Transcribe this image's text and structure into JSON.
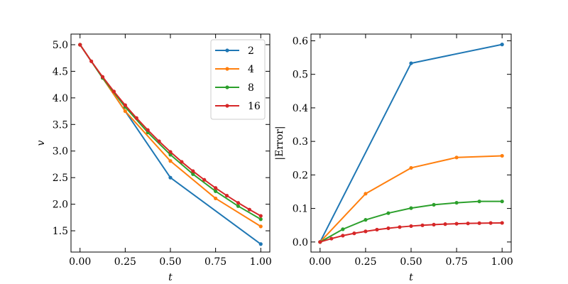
{
  "chart_data": [
    {
      "type": "line",
      "xlabel": "t",
      "ylabel": "v",
      "xlim": [
        -0.05,
        1.05
      ],
      "ylim": [
        1.1,
        5.2
      ],
      "xticks": [
        0.0,
        0.25,
        0.5,
        0.75,
        1.0
      ],
      "xtick_labels": [
        "0.00",
        "0.25",
        "0.50",
        "0.75",
        "1.00"
      ],
      "yticks": [
        1.5,
        2.0,
        2.5,
        3.0,
        3.5,
        4.0,
        4.5,
        5.0
      ],
      "ytick_labels": [
        "1.5",
        "2.0",
        "2.5",
        "3.0",
        "3.5",
        "4.0",
        "4.5",
        "5.0"
      ],
      "grid": false,
      "legend": "top-right",
      "series": [
        {
          "name": "2",
          "color": "#1f77b4",
          "x": [
            0,
            0.5,
            1.0
          ],
          "y": [
            5.0,
            2.5,
            1.25
          ]
        },
        {
          "name": "4",
          "color": "#ff7f0e",
          "x": [
            0,
            0.25,
            0.5,
            0.75,
            1.0
          ],
          "y": [
            5.0,
            3.75,
            2.8125,
            2.109,
            1.582
          ]
        },
        {
          "name": "8",
          "color": "#2ca02c",
          "x": [
            0,
            0.125,
            0.25,
            0.375,
            0.5,
            0.625,
            0.75,
            0.875,
            1.0
          ],
          "y": [
            5.0,
            4.375,
            3.828,
            3.35,
            2.931,
            2.565,
            2.244,
            1.964,
            1.718
          ]
        },
        {
          "name": "16",
          "color": "#d62728",
          "x": [
            0,
            0.0625,
            0.125,
            0.1875,
            0.25,
            0.3125,
            0.375,
            0.4375,
            0.5,
            0.5625,
            0.625,
            0.6875,
            0.75,
            0.8125,
            0.875,
            0.9375,
            1.0
          ],
          "y": [
            5.0,
            4.688,
            4.395,
            4.12,
            3.863,
            3.621,
            3.395,
            3.183,
            2.984,
            2.797,
            2.622,
            2.459,
            2.305,
            2.161,
            2.026,
            1.899,
            1.78
          ]
        }
      ]
    },
    {
      "type": "line",
      "xlabel": "t",
      "ylabel": "|Error|",
      "xlim": [
        -0.05,
        1.05
      ],
      "ylim": [
        -0.03,
        0.62
      ],
      "xticks": [
        0.0,
        0.25,
        0.5,
        0.75,
        1.0
      ],
      "xtick_labels": [
        "0.00",
        "0.25",
        "0.50",
        "0.75",
        "1.00"
      ],
      "yticks": [
        0.0,
        0.1,
        0.2,
        0.3,
        0.4,
        0.5,
        0.6
      ],
      "ytick_labels": [
        "0.0",
        "0.1",
        "0.2",
        "0.3",
        "0.4",
        "0.5",
        "0.6"
      ],
      "grid": false,
      "series": [
        {
          "name": "2",
          "color": "#1f77b4",
          "x": [
            0,
            0.5,
            1.0
          ],
          "y": [
            0.0,
            0.533,
            0.589
          ]
        },
        {
          "name": "4",
          "color": "#ff7f0e",
          "x": [
            0,
            0.25,
            0.5,
            0.75,
            1.0
          ],
          "y": [
            0.0,
            0.144,
            0.221,
            0.252,
            0.257
          ]
        },
        {
          "name": "8",
          "color": "#2ca02c",
          "x": [
            0,
            0.125,
            0.25,
            0.375,
            0.5,
            0.625,
            0.75,
            0.875,
            1.0
          ],
          "y": [
            0.0,
            0.038,
            0.066,
            0.086,
            0.101,
            0.111,
            0.117,
            0.121,
            0.121
          ]
        },
        {
          "name": "16",
          "color": "#d62728",
          "x": [
            0,
            0.0625,
            0.125,
            0.1875,
            0.25,
            0.3125,
            0.375,
            0.4375,
            0.5,
            0.5625,
            0.625,
            0.6875,
            0.75,
            0.8125,
            0.875,
            0.9375,
            1.0
          ],
          "y": [
            0.0,
            0.0101,
            0.019,
            0.0258,
            0.0317,
            0.0368,
            0.041,
            0.0445,
            0.0474,
            0.0498,
            0.0517,
            0.0533,
            0.0545,
            0.0554,
            0.0561,
            0.0566,
            0.0569
          ]
        }
      ]
    }
  ]
}
